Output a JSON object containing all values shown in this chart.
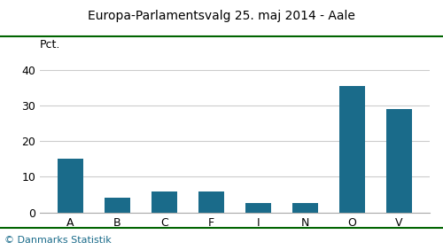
{
  "title": "Europa-Parlamentsvalg 25. maj 2014 - Aale",
  "categories": [
    "A",
    "B",
    "C",
    "F",
    "I",
    "N",
    "O",
    "V"
  ],
  "values": [
    15.0,
    4.1,
    6.0,
    5.9,
    2.6,
    2.7,
    35.3,
    29.0
  ],
  "bar_color": "#1a6b8a",
  "ylabel": "Pct.",
  "ylim": [
    0,
    42
  ],
  "yticks": [
    0,
    10,
    20,
    30,
    40
  ],
  "footer": "© Danmarks Statistik",
  "title_color": "#000000",
  "background_color": "#ffffff",
  "grid_color": "#cccccc",
  "top_line_color": "#006400",
  "bottom_line_color": "#006400",
  "footer_color": "#1a6b8a",
  "title_fontsize": 10,
  "tick_fontsize": 9,
  "footer_fontsize": 8
}
